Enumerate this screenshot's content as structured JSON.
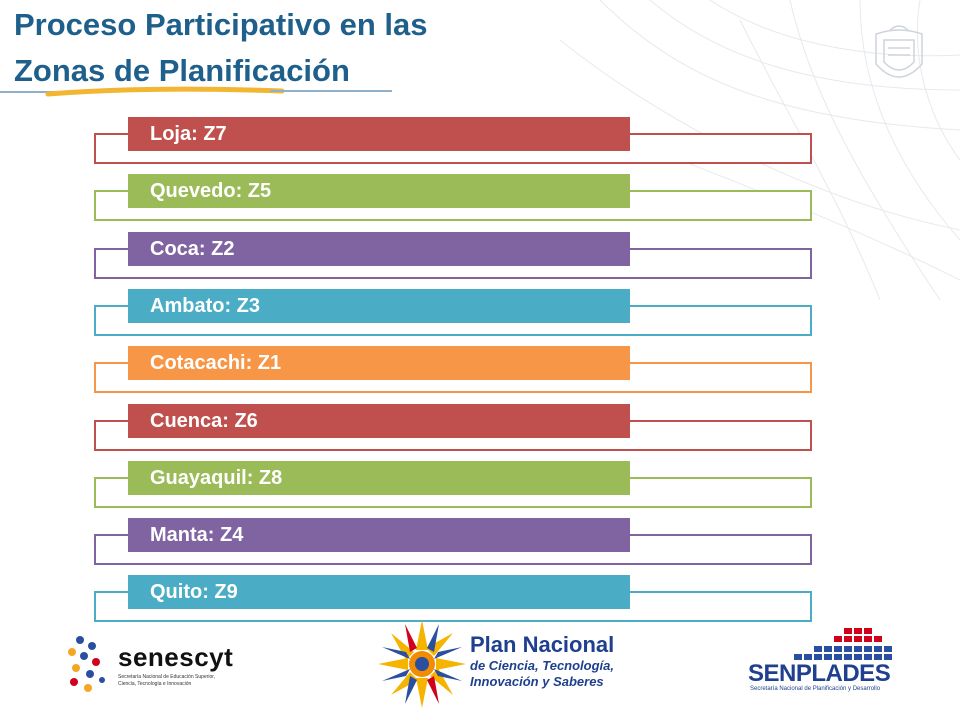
{
  "header": {
    "title_line1": "Proceso Participativo en las",
    "title_line2": "Zonas de Planificación"
  },
  "zones": [
    {
      "label": "Loja: Z7",
      "color": "#c0504d"
    },
    {
      "label": "Quevedo: Z5",
      "color": "#9bbb59"
    },
    {
      "label": "Coca: Z2",
      "color": "#8064a2"
    },
    {
      "label": "Ambato: Z3",
      "color": "#4bacc6"
    },
    {
      "label": "Cotacachi: Z1",
      "color": "#f79646"
    },
    {
      "label": "Cuenca: Z6",
      "color": "#c0504d"
    },
    {
      "label": "Guayaquil: Z8",
      "color": "#9bbb59"
    },
    {
      "label": "Manta: Z4",
      "color": "#8064a2"
    },
    {
      "label": "Quito: Z9",
      "color": "#4bacc6"
    }
  ],
  "logos": {
    "senescyt": {
      "name": "senescyt",
      "subtitle_line1": "Secretaría Nacional de Educación Superior,",
      "subtitle_line2": "Ciencia, Tecnología e Innovación"
    },
    "plan_nacional": {
      "line1": "Plan Nacional",
      "line2": "de Ciencia, Tecnología,",
      "line3": "Innovación y Saberes"
    },
    "senplades": {
      "name": "SENPLADES",
      "subtitle": "Secretaría Nacional de Planificación y Desarrollo"
    }
  },
  "colors": {
    "title": "#1f5f8b",
    "accent_underline": "#f2b632"
  }
}
